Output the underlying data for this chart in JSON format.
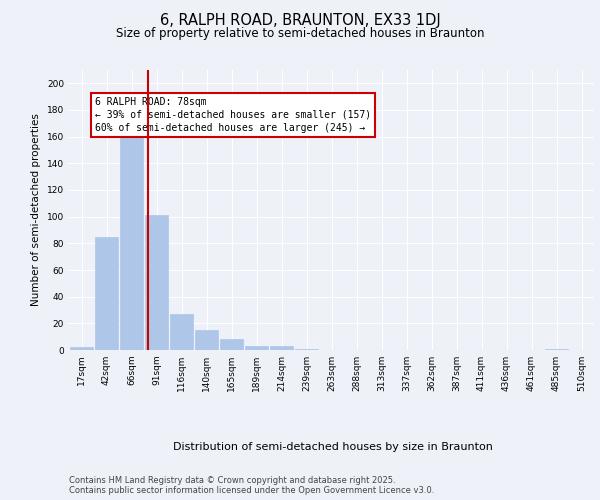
{
  "title1": "6, RALPH ROAD, BRAUNTON, EX33 1DJ",
  "title2": "Size of property relative to semi-detached houses in Braunton",
  "xlabel": "Distribution of semi-detached houses by size in Braunton",
  "ylabel": "Number of semi-detached properties",
  "footnote": "Contains HM Land Registry data © Crown copyright and database right 2025.\nContains public sector information licensed under the Open Government Licence v3.0.",
  "bin_labels": [
    "17sqm",
    "42sqm",
    "66sqm",
    "91sqm",
    "116sqm",
    "140sqm",
    "165sqm",
    "189sqm",
    "214sqm",
    "239sqm",
    "263sqm",
    "288sqm",
    "313sqm",
    "337sqm",
    "362sqm",
    "387sqm",
    "411sqm",
    "436sqm",
    "461sqm",
    "485sqm",
    "510sqm"
  ],
  "bar_values": [
    2,
    85,
    161,
    101,
    27,
    15,
    8,
    3,
    3,
    1,
    0,
    0,
    0,
    0,
    0,
    0,
    0,
    0,
    0,
    1,
    0
  ],
  "bar_color": "#aec6e8",
  "bar_edge_color": "#aec6e8",
  "vline_x": 2.67,
  "vline_color": "#cc0000",
  "annotation_text": "6 RALPH ROAD: 78sqm\n← 39% of semi-detached houses are smaller (157)\n60% of semi-detached houses are larger (245) →",
  "annotation_box_color": "#cc0000",
  "annotation_fontsize": 7.0,
  "ylim": [
    0,
    210
  ],
  "yticks": [
    0,
    20,
    40,
    60,
    80,
    100,
    120,
    140,
    160,
    180,
    200
  ],
  "background_color": "#eef2f8",
  "plot_background": "#eef2f8",
  "grid_color": "#ffffff",
  "title1_fontsize": 10.5,
  "title2_fontsize": 8.5,
  "xlabel_fontsize": 8.0,
  "ylabel_fontsize": 7.5,
  "tick_fontsize": 6.5,
  "footnote_fontsize": 6.0
}
